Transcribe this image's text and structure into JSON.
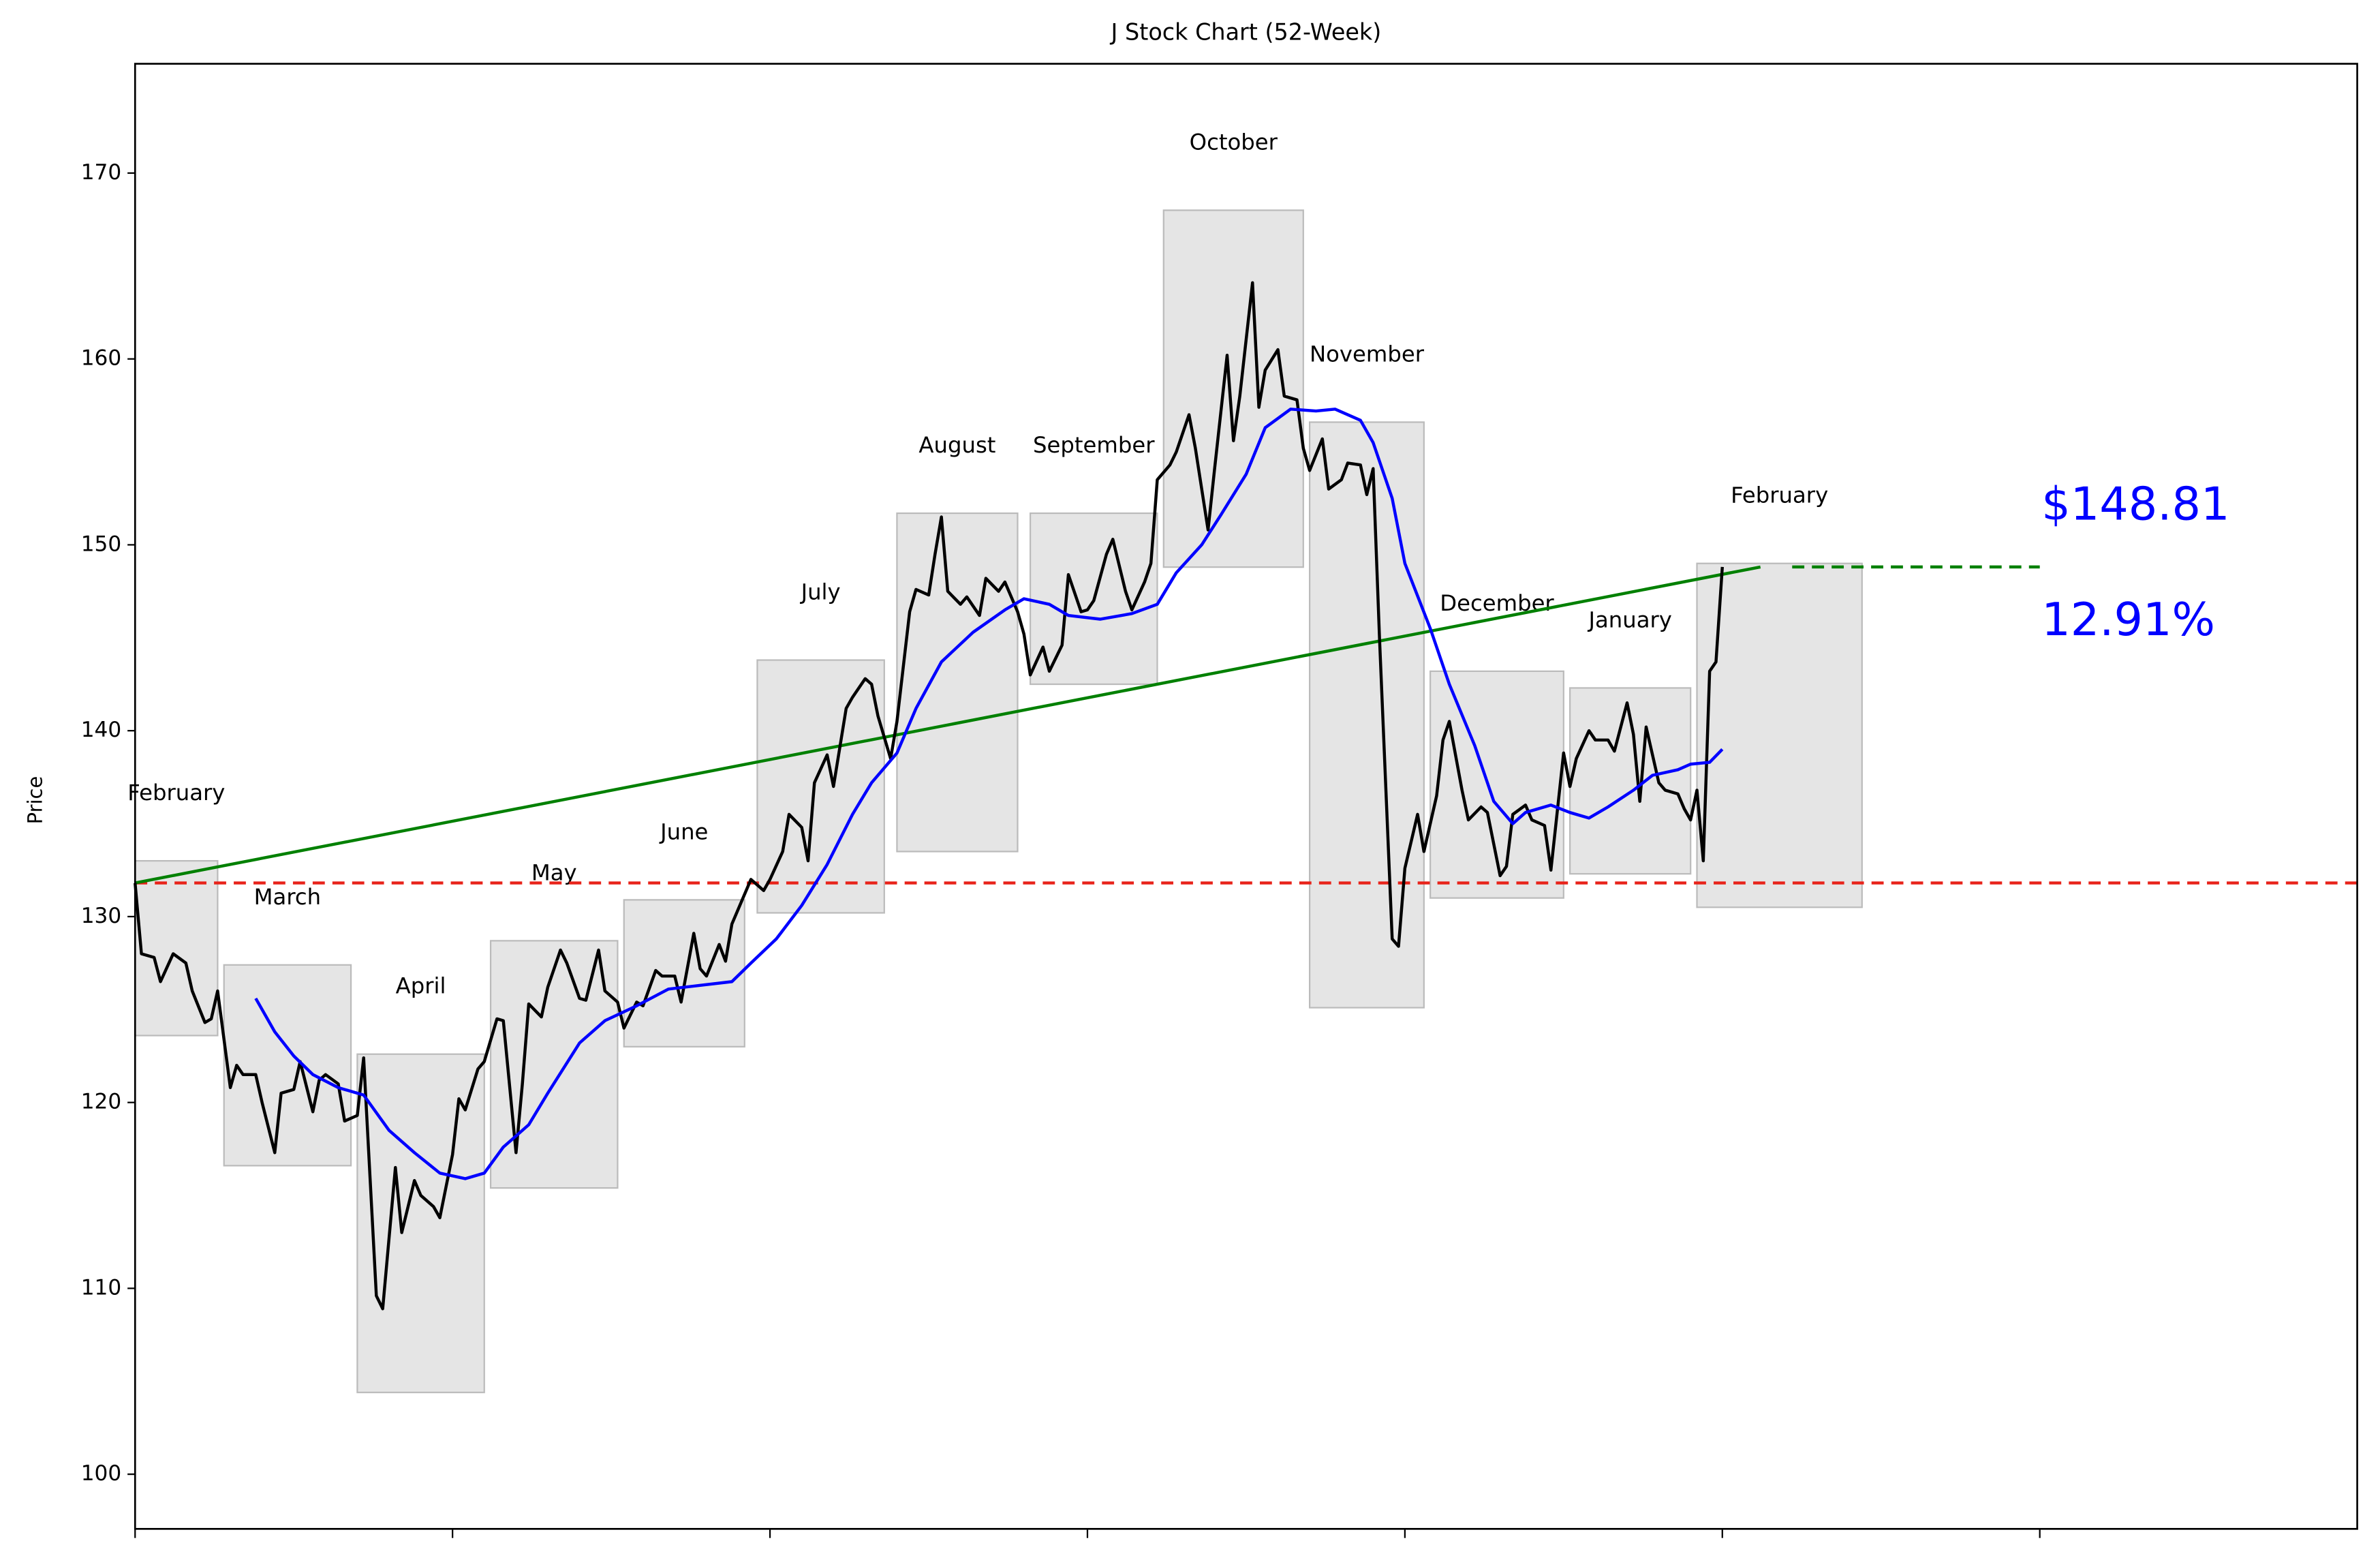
{
  "chart_data": {
    "type": "line",
    "title": "J Stock Chart (52-Week)",
    "ylabel": "Price",
    "xlim": [
      0,
      350
    ],
    "ylim": [
      97.06,
      175.88
    ],
    "xticks": [
      0,
      50,
      100,
      150,
      200,
      250,
      300
    ],
    "yticks": [
      100,
      110,
      120,
      130,
      140,
      150,
      160,
      170
    ],
    "series": [
      {
        "color": "#000000",
        "x": [
          0,
          1,
          3,
          4,
          6,
          8,
          9,
          11,
          12,
          13,
          15,
          16,
          17,
          19,
          20,
          22,
          23,
          25,
          26,
          28,
          29,
          30,
          32,
          33,
          35,
          36,
          38,
          39,
          41,
          42,
          44,
          45,
          47,
          48,
          50,
          51,
          52,
          54,
          55,
          57,
          58,
          60,
          61,
          62,
          64,
          65,
          67,
          68,
          70,
          71,
          73,
          74,
          76,
          77,
          79,
          80,
          82,
          83,
          85,
          86,
          88,
          89,
          90,
          92,
          93,
          94,
          96,
          97,
          99,
          100,
          102,
          103,
          105,
          106,
          107,
          109,
          110,
          112,
          113,
          115,
          116,
          117,
          119,
          120,
          122,
          123,
          125,
          126,
          127,
          128,
          130,
          131,
          133,
          134,
          136,
          137,
          139,
          140,
          141,
          143,
          144,
          146,
          147,
          149,
          150,
          151,
          153,
          154,
          156,
          157,
          159,
          160,
          161,
          163,
          164,
          166,
          167,
          169,
          170,
          172,
          173,
          174,
          176,
          177,
          178,
          180,
          181,
          183,
          184,
          185,
          187,
          188,
          190,
          191,
          193,
          194,
          195,
          196,
          198,
          199,
          200,
          202,
          203,
          205,
          206,
          207,
          209,
          210,
          212,
          213,
          215,
          216,
          217,
          219,
          220,
          222,
          223,
          225,
          226,
          227,
          229,
          230,
          232,
          233,
          235,
          236,
          237,
          238,
          240,
          241,
          243,
          244,
          245,
          246,
          247,
          248,
          249,
          250
        ],
        "values": [
          131.8,
          128,
          127.8,
          126.5,
          128,
          127.5,
          126,
          124.3,
          124.5,
          126,
          120.8,
          122,
          121.5,
          121.5,
          120,
          117.3,
          120.5,
          120.7,
          122.2,
          119.5,
          121.2,
          121.5,
          121,
          119,
          119.3,
          122.4,
          109.6,
          108.9,
          116.5,
          113,
          115.8,
          115,
          114.4,
          113.8,
          117.2,
          120.2,
          119.6,
          121.8,
          122.2,
          124.5,
          124.4,
          117.3,
          121,
          125.3,
          124.6,
          126.2,
          128.2,
          127.5,
          125.6,
          125.5,
          128.2,
          126,
          125.4,
          124,
          125.4,
          125.2,
          127.1,
          126.8,
          126.8,
          125.4,
          129.1,
          127.2,
          126.8,
          128.5,
          127.6,
          129.6,
          131.2,
          132,
          131.4,
          132,
          133.5,
          135.5,
          134.8,
          133,
          137.2,
          138.7,
          137,
          141.2,
          141.8,
          142.8,
          142.5,
          140.8,
          138.5,
          140.5,
          146.4,
          147.6,
          147.3,
          149.5,
          151.5,
          147.5,
          146.8,
          147.2,
          146.2,
          148.2,
          147.5,
          148,
          146.4,
          145.2,
          143,
          144.5,
          143.2,
          144.6,
          148.4,
          146.4,
          146.5,
          147,
          149.5,
          150.3,
          147.5,
          146.5,
          148,
          149,
          153.5,
          154.3,
          155,
          157,
          155.2,
          150.8,
          154,
          160.2,
          155.6,
          158,
          164.1,
          157.4,
          159.4,
          160.5,
          158,
          157.8,
          155.2,
          154,
          155.7,
          153,
          153.5,
          154.4,
          154.3,
          152.7,
          154.1,
          145,
          128.8,
          128.4,
          132.6,
          135.5,
          133.5,
          136.5,
          139.5,
          140.5,
          136.8,
          135.2,
          135.9,
          135.6,
          132.2,
          132.7,
          135.5,
          136,
          135.2,
          134.9,
          132.5,
          138.8,
          137,
          138.5,
          140,
          139.5,
          139.5,
          138.9,
          141.5,
          139.8,
          136.2,
          140.2,
          137.2,
          136.8,
          136.6,
          135.8,
          135.2,
          136.8,
          133,
          143.2,
          143.7,
          148.81
        ]
      },
      {
        "color": "#0000ff",
        "x": [
          19,
          22,
          25,
          28,
          32,
          36,
          40,
          44,
          48,
          52,
          55,
          58,
          62,
          65,
          70,
          74,
          79,
          84,
          89,
          94,
          97,
          101,
          105,
          109,
          113,
          116,
          120,
          123,
          127,
          132,
          137,
          140,
          144,
          147,
          152,
          157,
          161,
          164,
          168,
          171,
          175,
          178,
          182,
          186,
          189,
          193,
          195,
          198,
          200,
          204,
          207,
          211,
          214,
          217,
          219,
          223,
          226,
          229,
          232,
          236,
          239,
          243,
          245,
          248,
          250
        ],
        "values": [
          125.6,
          123.8,
          122.5,
          121.5,
          120.8,
          120.4,
          118.5,
          117.3,
          116.2,
          115.9,
          116.2,
          117.6,
          118.8,
          120.5,
          123.2,
          124.4,
          125.2,
          126.1,
          126.3,
          126.5,
          127.5,
          128.8,
          130.6,
          132.8,
          135.5,
          137.2,
          138.8,
          141.2,
          143.7,
          145.3,
          146.5,
          147.1,
          146.8,
          146.2,
          146,
          146.3,
          146.8,
          148.5,
          150,
          151.6,
          153.8,
          156.3,
          157.3,
          157.2,
          157.3,
          156.7,
          155.5,
          152.5,
          149,
          145.5,
          142.5,
          139.2,
          136.2,
          135,
          135.6,
          136,
          135.6,
          135.3,
          135.9,
          136.8,
          137.6,
          137.9,
          138.2,
          138.3,
          139
        ]
      }
    ],
    "months": [
      {
        "label": "February",
        "x": [
          0,
          13
        ],
        "range": [
          123.6,
          133
        ]
      },
      {
        "label": "March",
        "x": [
          14,
          34
        ],
        "range": [
          116.6,
          127.4
        ]
      },
      {
        "label": "April",
        "x": [
          35,
          55
        ],
        "range": [
          104.4,
          122.6
        ]
      },
      {
        "label": "May",
        "x": [
          56,
          76
        ],
        "range": [
          115.4,
          128.7
        ]
      },
      {
        "label": "June",
        "x": [
          77,
          96
        ],
        "range": [
          123,
          130.9
        ]
      },
      {
        "label": "July",
        "x": [
          98,
          118
        ],
        "range": [
          130.2,
          143.8
        ]
      },
      {
        "label": "August",
        "x": [
          120,
          139
        ],
        "range": [
          133.5,
          151.7
        ]
      },
      {
        "label": "September",
        "x": [
          141,
          161
        ],
        "range": [
          142.5,
          151.7
        ]
      },
      {
        "label": "October",
        "x": [
          162,
          184
        ],
        "range": [
          148.8,
          168
        ]
      },
      {
        "label": "November",
        "x": [
          185,
          203
        ],
        "range": [
          125.1,
          156.6
        ]
      },
      {
        "label": "December",
        "x": [
          204,
          225
        ],
        "range": [
          131,
          143.2
        ]
      },
      {
        "label": "January",
        "x": [
          226,
          245
        ],
        "range": [
          132.3,
          142.3
        ]
      },
      {
        "label": "February",
        "x": [
          246,
          272
        ],
        "range": [
          130.5,
          149
        ]
      }
    ],
    "baseline": {
      "value": 131.81,
      "color": "#e8231a"
    },
    "trend_line": {
      "x": [
        0,
        256
      ],
      "values": [
        131.81,
        148.81
      ],
      "color": "#008000"
    },
    "target_line": {
      "x": [
        261,
        300
      ],
      "value": 148.81,
      "color": "#008000"
    },
    "price_label": "$148.81",
    "change_label": "12.91%",
    "annotation_color": "#0000ff"
  }
}
